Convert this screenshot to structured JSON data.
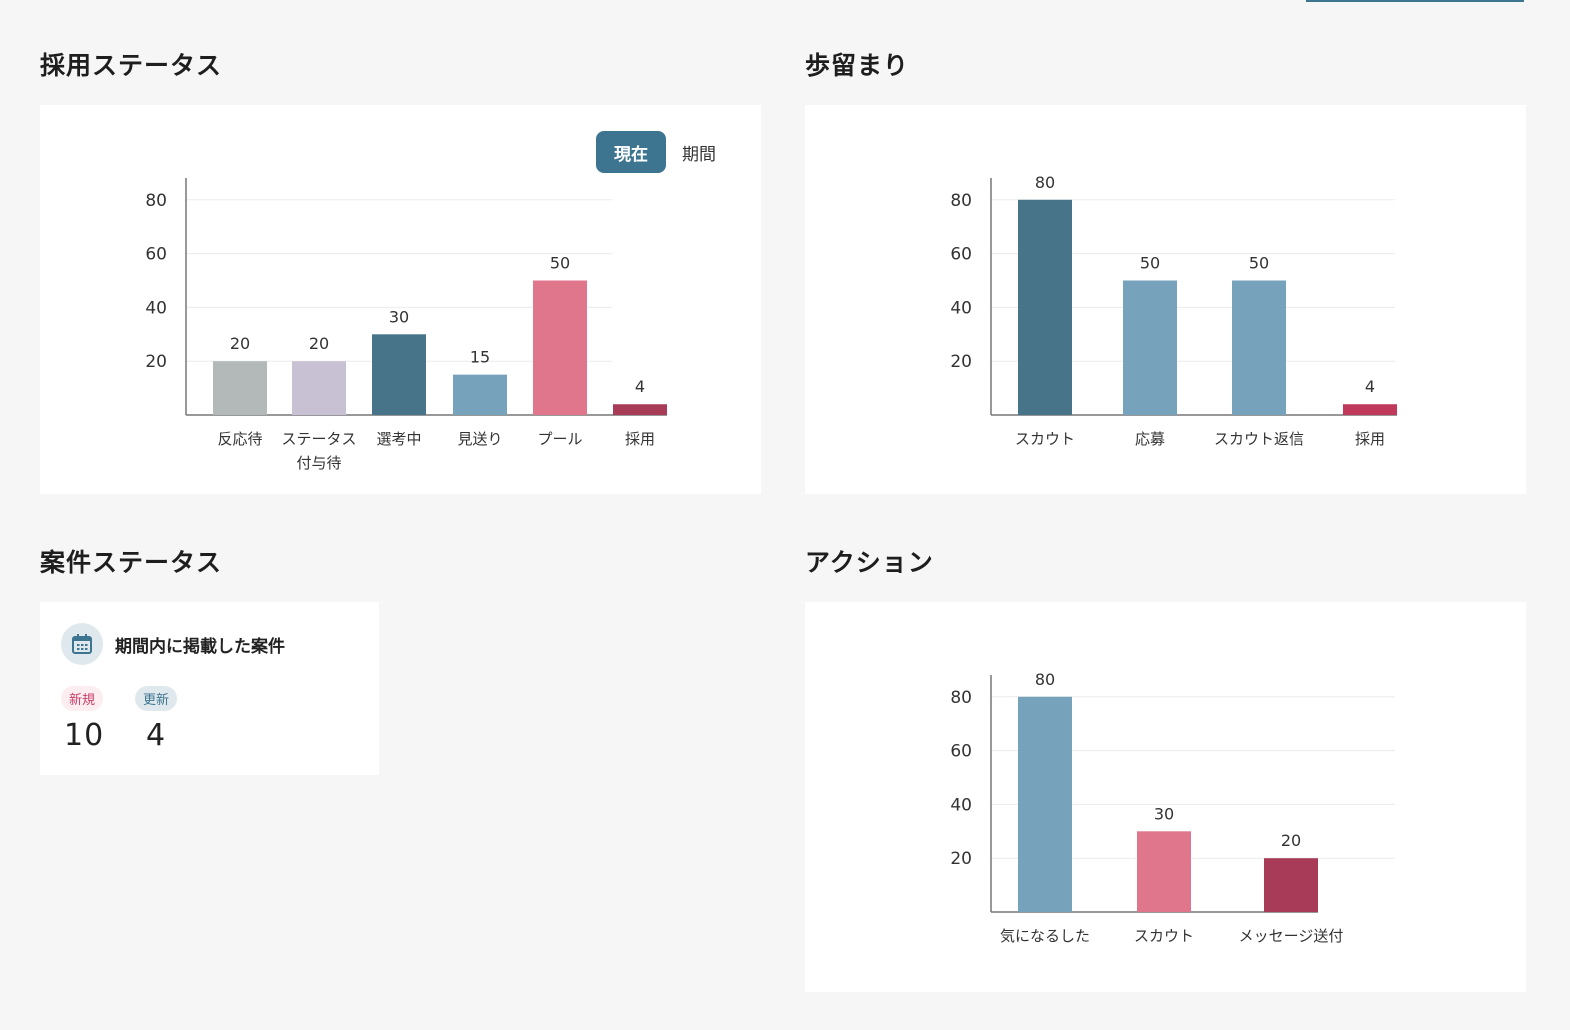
{
  "sections": {
    "hiring_status": "採用ステータス",
    "yield": "歩留まり",
    "job_status": "案件ステータス",
    "action": "アクション"
  },
  "toggle": {
    "current": "現在",
    "period": "期間"
  },
  "job_card": {
    "title": "期間内に掲載した案件",
    "new_label": "新規",
    "new_value": "10",
    "updated_label": "更新",
    "updated_value": "4"
  },
  "chart_data": [
    {
      "type": "bar",
      "title": "採用ステータス",
      "categories": [
        "反応待",
        "ステータス\n付与待",
        "選考中",
        "見送り",
        "プール",
        "採用"
      ],
      "values": [
        20,
        20,
        30,
        15,
        50,
        4
      ],
      "colors": [
        "#b3b9b9",
        "#c8c1d4",
        "#477489",
        "#76a2bc",
        "#df768b",
        "#a83b58"
      ],
      "yticks": [
        20,
        40,
        60,
        80
      ],
      "ylim": [
        0,
        88
      ],
      "grid": true
    },
    {
      "type": "bar",
      "title": "歩留まり",
      "categories": [
        "スカウト",
        "応募",
        "スカウト返信",
        "採用"
      ],
      "values": [
        80,
        50,
        50,
        4
      ],
      "colors": [
        "#477489",
        "#76a2bc",
        "#76a2bc",
        "#c0385a"
      ],
      "yticks": [
        20,
        40,
        60,
        80
      ],
      "ylim": [
        0,
        88
      ],
      "grid": true
    },
    {
      "type": "bar",
      "title": "アクション",
      "categories": [
        "気になるした",
        "スカウト",
        "メッセージ送付"
      ],
      "values": [
        80,
        30,
        20
      ],
      "colors": [
        "#76a2bc",
        "#df768b",
        "#a83b58"
      ],
      "yticks": [
        20,
        40,
        60,
        80
      ],
      "ylim": [
        0,
        88
      ],
      "grid": true
    }
  ]
}
